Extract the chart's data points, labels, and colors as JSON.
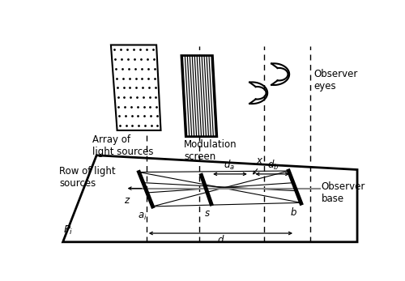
{
  "fig_width": 5.0,
  "fig_height": 3.47,
  "dpi": 100,
  "bg_color": "#ffffff",
  "line_color": "#000000",
  "labels": {
    "array_of_light_sources": "Array of\nlight sources",
    "modulation_screen": "Modulation\nscreen",
    "observer_eyes": "Observer\neyes",
    "row_of_light_sources": "Row of light\nsources",
    "observer_base": "Observer\nbase",
    "pi": "$P_i$",
    "z": "z",
    "ai": "$a_i$",
    "s": "s",
    "b": "b",
    "da": "$d_a$",
    "db": "$d_b$",
    "x": "x",
    "d": "d"
  }
}
